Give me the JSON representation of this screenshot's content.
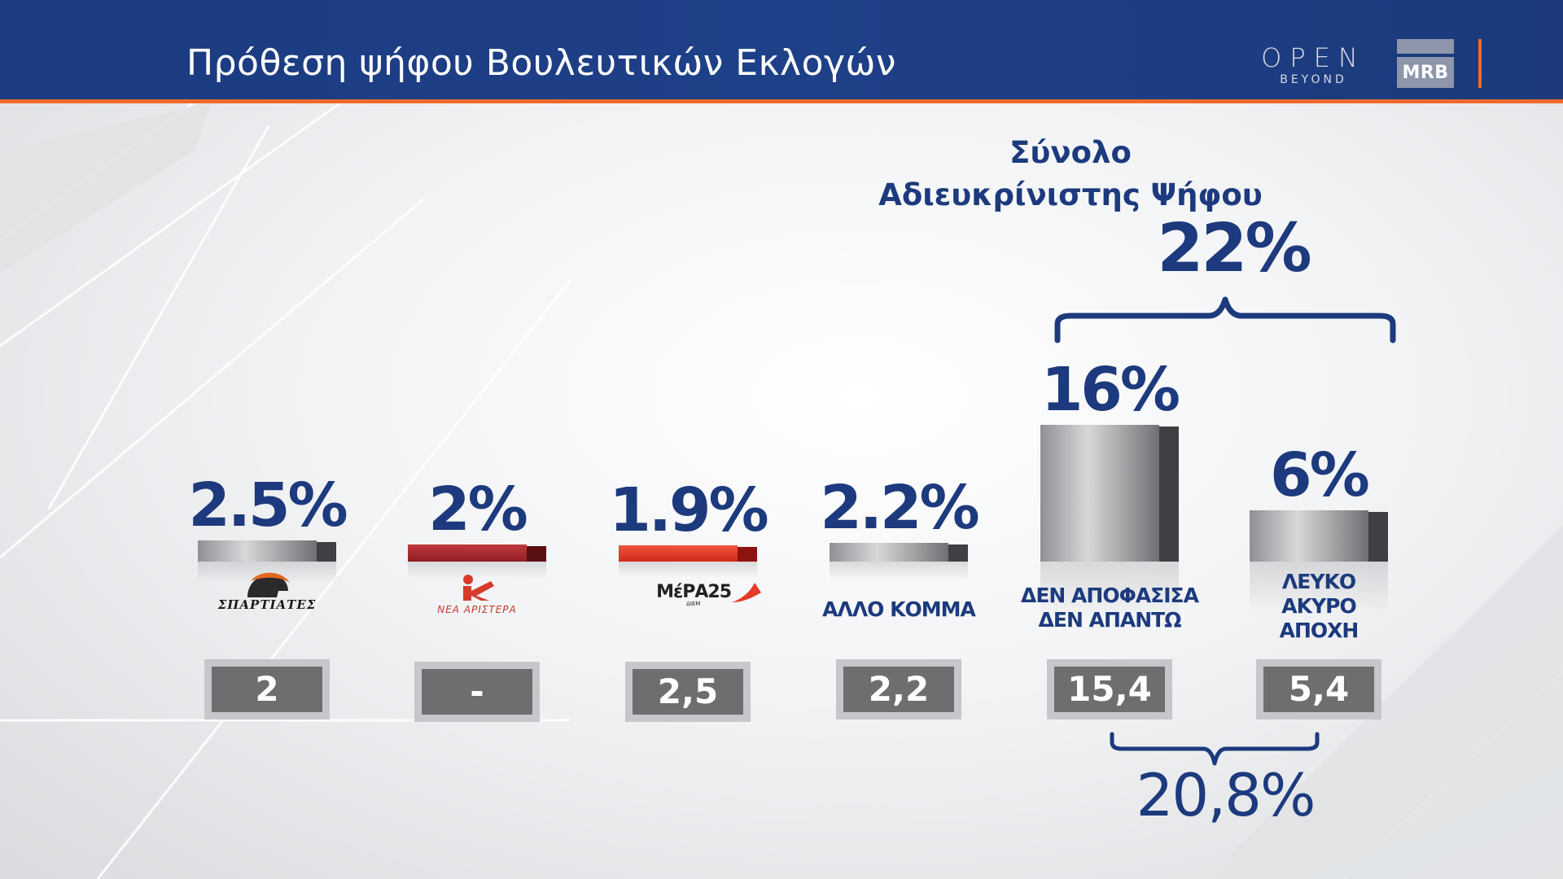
{
  "header": {
    "title": "Πρόθεση ψήφου Βουλευτικών Εκλογών",
    "open_main": "OPEN",
    "open_sub": "BEYOND",
    "mrb": "MRB"
  },
  "colors": {
    "header_bg": "#1e4088",
    "accent_orange": "#ef6a2c",
    "text_navy": "#1c3a7d",
    "bar_gray": "#6e6e70",
    "bar_red_dark": "#a8262a",
    "bar_red_bright": "#e63c2a"
  },
  "chart_data": {
    "type": "bar",
    "categories": [
      "ΣΠΑΡΤΙΑΤΕΣ",
      "ΝΕΑ ΑΡΙΣΤΕΡΑ",
      "ΜέΡΑ25",
      "ΑΛΛΟ ΚΟΜΜΑ",
      "ΔΕΝ ΑΠΟΦΑΣΙΣΑ ΔΕΝ ΑΠΑΝΤΩ",
      "ΛΕΥΚΟ ΑΚΥΡΟ ΑΠΟΧΗ"
    ],
    "values": [
      2.5,
      2,
      1.9,
      2.2,
      16,
      6
    ],
    "value_labels": [
      "2.5%",
      "2%",
      "1.9%",
      "2.2%",
      "16%",
      "6%"
    ],
    "previous_values": [
      2,
      null,
      2.5,
      2.2,
      15.4,
      5.4
    ],
    "previous_labels": [
      "2",
      "-",
      "2,5",
      "2,2",
      "15,4",
      "5,4"
    ],
    "bar_styles": [
      "gray",
      "red-dark",
      "red-bright",
      "gray",
      "gray",
      "gray"
    ],
    "category_display": [
      {
        "kind": "logo",
        "text": "ΣΠΑΡΤΙΑΤΕΣ",
        "logo": "spartan-helmet-icon"
      },
      {
        "kind": "logo",
        "text": "ΝΕΑ ΑΡΙΣΤΕΡΑ",
        "logo": "nea-aristera-logo"
      },
      {
        "kind": "logo",
        "text": "ΜέΡΑ25",
        "sub": "ΔΙΕΜ",
        "logo": "mera25-logo"
      },
      {
        "kind": "text",
        "lines": [
          "ΑΛΛΟ ΚΟΜΜΑ"
        ]
      },
      {
        "kind": "text",
        "lines": [
          "ΔΕΝ ΑΠΟΦΑΣΙΣΑ",
          "ΔΕΝ ΑΠΑΝΤΩ"
        ]
      },
      {
        "kind": "text",
        "lines": [
          "ΛΕΥΚΟ",
          "ΑΚΥΡΟ",
          "ΑΠΟΧΗ"
        ]
      }
    ],
    "summary": {
      "title_lines": [
        "Σύνολο",
        "Αδιευκρίνιστης Ψήφου"
      ],
      "total": "22%",
      "previous_total": "20,8%"
    },
    "grid": false,
    "legend": "none"
  }
}
